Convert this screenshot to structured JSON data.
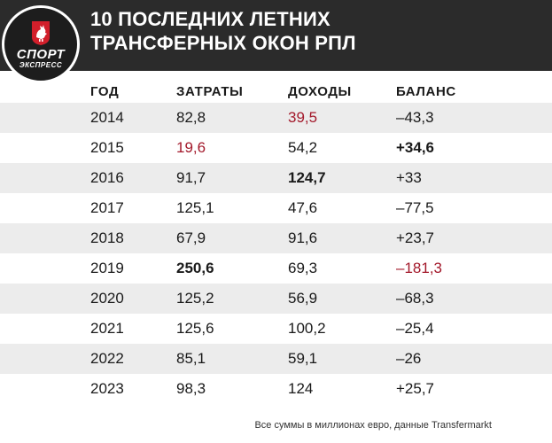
{
  "brand": {
    "logo_line1": "СПОРТ",
    "logo_line2": "ЭКСПРЕСС"
  },
  "title_lines": [
    "10 ПОСЛЕДНИХ ЛЕТНИХ",
    "ТРАНСФЕРНЫХ ОКОН РПЛ"
  ],
  "headers": [
    "ГОД",
    "ЗАТРАТЫ",
    "ДОХОДЫ",
    "БАЛАНС"
  ],
  "rows": [
    {
      "year": "2014",
      "spend": "82,8",
      "income": "39,5",
      "balance": "–43,3"
    },
    {
      "year": "2015",
      "spend": "19,6",
      "income": "54,2",
      "balance": "+34,6"
    },
    {
      "year": "2016",
      "spend": "91,7",
      "income": "124,7",
      "balance": "+33"
    },
    {
      "year": "2017",
      "spend": "125,1",
      "income": "47,6",
      "balance": "–77,5"
    },
    {
      "year": "2018",
      "spend": "67,9",
      "income": "91,6",
      "balance": "+23,7"
    },
    {
      "year": "2019",
      "spend": "250,6",
      "income": "69,3",
      "balance": "–181,3"
    },
    {
      "year": "2020",
      "spend": "125,2",
      "income": "56,9",
      "balance": "–68,3"
    },
    {
      "year": "2021",
      "spend": "125,6",
      "income": "100,2",
      "balance": "–25,4"
    },
    {
      "year": "2022",
      "spend": "85,1",
      "income": "59,1",
      "balance": "–26"
    },
    {
      "year": "2023",
      "spend": "98,3",
      "income": "124",
      "balance": "+25,7"
    }
  ],
  "footnote": "Все суммы в миллионах евро, данные Transfermarkt",
  "colors": {
    "header_bg": "#2b2b2b",
    "highlight_red": "#a3192b",
    "row_shade": "#ececec"
  },
  "chart_data": {
    "type": "table",
    "title": "10 ПОСЛЕДНИХ ЛЕТНИХ ТРАНСФЕРНЫХ ОКОН РПЛ",
    "columns": [
      "ГОД",
      "ЗАТРАТЫ",
      "ДОХОДЫ",
      "БАЛАНС"
    ],
    "x": [
      2014,
      2015,
      2016,
      2017,
      2018,
      2019,
      2020,
      2021,
      2022,
      2023
    ],
    "series": [
      {
        "name": "ЗАТРАТЫ",
        "values": [
          82.8,
          19.6,
          91.7,
          125.1,
          67.9,
          250.6,
          125.2,
          125.6,
          85.1,
          98.3
        ]
      },
      {
        "name": "ДОХОДЫ",
        "values": [
          39.5,
          54.2,
          124.7,
          47.6,
          91.6,
          69.3,
          56.9,
          100.2,
          59.1,
          124
        ]
      },
      {
        "name": "БАЛАНС",
        "values": [
          -43.3,
          34.6,
          33,
          -77.5,
          23.7,
          -181.3,
          -68.3,
          -25.4,
          -26,
          25.7
        ]
      }
    ],
    "highlights": {
      "spend_min": {
        "year": 2015,
        "style": "red"
      },
      "spend_max": {
        "year": 2019,
        "style": "bold"
      },
      "income_min": {
        "year": 2014,
        "style": "red"
      },
      "income_max": {
        "year": 2016,
        "style": "bold"
      },
      "balance_max": {
        "year": 2015,
        "style": "bold"
      },
      "balance_min": {
        "year": 2019,
        "style": "red"
      }
    },
    "unit": "млн евро"
  }
}
